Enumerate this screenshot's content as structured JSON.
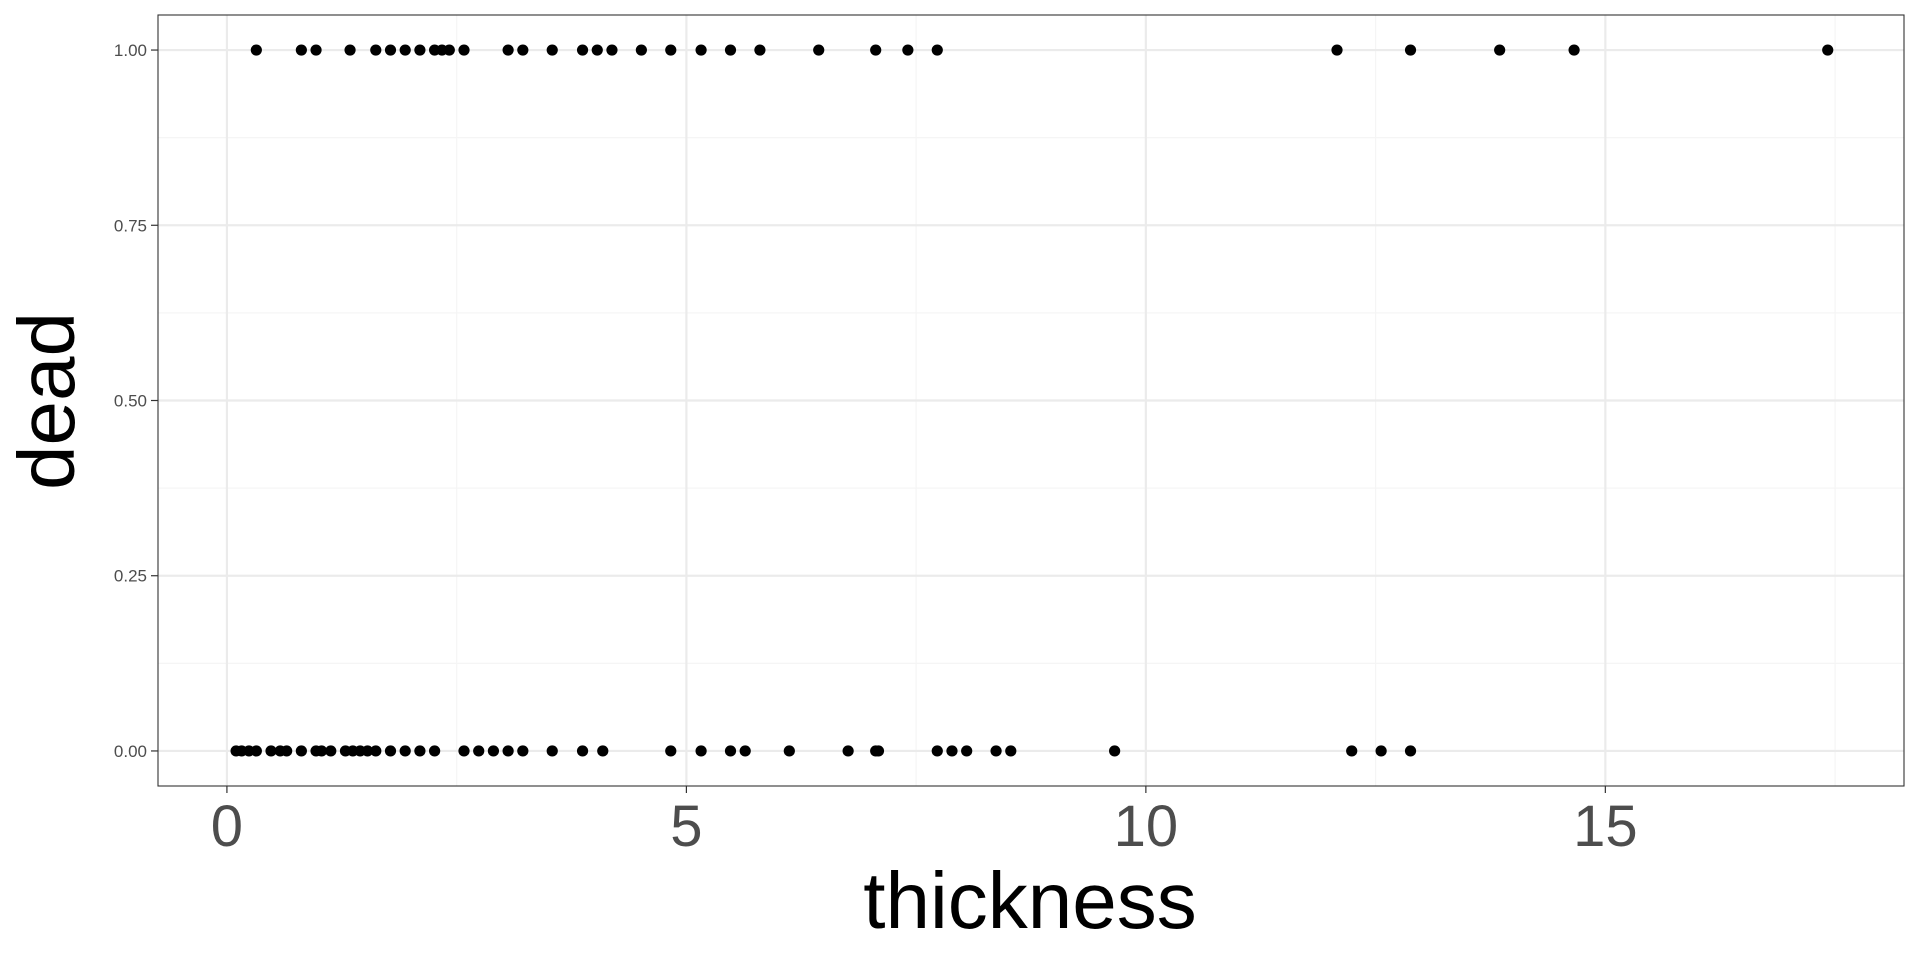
{
  "chart_data": {
    "type": "scatter",
    "xlabel": "thickness",
    "ylabel": "dead",
    "xlim": [
      -0.75,
      18.25
    ],
    "ylim": [
      -0.05,
      1.05
    ],
    "grid": true,
    "x_ticks": [
      0,
      5,
      10,
      15
    ],
    "x_tick_labels": [
      "0",
      "5",
      "10",
      "15"
    ],
    "x_minor_ticks": [
      2.5,
      7.5,
      12.5,
      17.5
    ],
    "y_ticks": [
      0,
      0.25,
      0.5,
      0.75,
      1
    ],
    "y_tick_labels": [
      "0.00",
      "0.25",
      "0.50",
      "0.75",
      "1.00"
    ],
    "y_minor_ticks": [
      0.125,
      0.375,
      0.625,
      0.875
    ],
    "point_color": "#000000",
    "grid_major_color": "#ebebeb",
    "grid_minor_color": "#f5f5f5",
    "border_color": "#333333",
    "series": [
      {
        "values": [
          [
            0.32,
            1
          ],
          [
            0.81,
            1
          ],
          [
            0.97,
            1
          ],
          [
            1.34,
            1
          ],
          [
            1.62,
            1
          ],
          [
            1.78,
            1
          ],
          [
            1.94,
            1
          ],
          [
            2.1,
            1
          ],
          [
            2.26,
            1
          ],
          [
            2.34,
            1
          ],
          [
            2.42,
            1
          ],
          [
            2.58,
            1
          ],
          [
            3.06,
            1
          ],
          [
            3.22,
            1
          ],
          [
            3.54,
            1
          ],
          [
            3.87,
            1
          ],
          [
            4.03,
            1
          ],
          [
            4.19,
            1
          ],
          [
            4.51,
            1
          ],
          [
            4.83,
            1
          ],
          [
            5.16,
            1
          ],
          [
            5.48,
            1
          ],
          [
            5.8,
            1
          ],
          [
            6.44,
            1
          ],
          [
            7.06,
            1
          ],
          [
            7.41,
            1
          ],
          [
            7.73,
            1
          ],
          [
            12.08,
            1
          ],
          [
            12.88,
            1
          ],
          [
            13.85,
            1
          ],
          [
            14.66,
            1
          ],
          [
            17.42,
            1
          ],
          [
            0.1,
            0
          ],
          [
            0.16,
            0
          ],
          [
            0.24,
            0
          ],
          [
            0.32,
            0
          ],
          [
            0.48,
            0
          ],
          [
            0.58,
            0
          ],
          [
            0.65,
            0
          ],
          [
            0.81,
            0
          ],
          [
            0.97,
            0
          ],
          [
            1.03,
            0
          ],
          [
            1.13,
            0
          ],
          [
            1.29,
            0
          ],
          [
            1.37,
            0
          ],
          [
            1.45,
            0
          ],
          [
            1.53,
            0
          ],
          [
            1.62,
            0
          ],
          [
            1.78,
            0
          ],
          [
            1.94,
            0
          ],
          [
            2.1,
            0
          ],
          [
            2.26,
            0
          ],
          [
            2.58,
            0
          ],
          [
            2.74,
            0
          ],
          [
            2.9,
            0
          ],
          [
            3.06,
            0
          ],
          [
            3.22,
            0
          ],
          [
            3.54,
            0
          ],
          [
            3.87,
            0
          ],
          [
            4.09,
            0
          ],
          [
            4.83,
            0
          ],
          [
            5.16,
            0
          ],
          [
            5.48,
            0
          ],
          [
            5.64,
            0
          ],
          [
            6.12,
            0
          ],
          [
            6.76,
            0
          ],
          [
            7.06,
            0
          ],
          [
            7.09,
            0
          ],
          [
            7.73,
            0
          ],
          [
            7.89,
            0
          ],
          [
            8.05,
            0
          ],
          [
            8.37,
            0
          ],
          [
            8.53,
            0
          ],
          [
            9.66,
            0
          ],
          [
            12.24,
            0
          ],
          [
            12.56,
            0
          ],
          [
            12.88,
            0
          ]
        ]
      }
    ]
  }
}
